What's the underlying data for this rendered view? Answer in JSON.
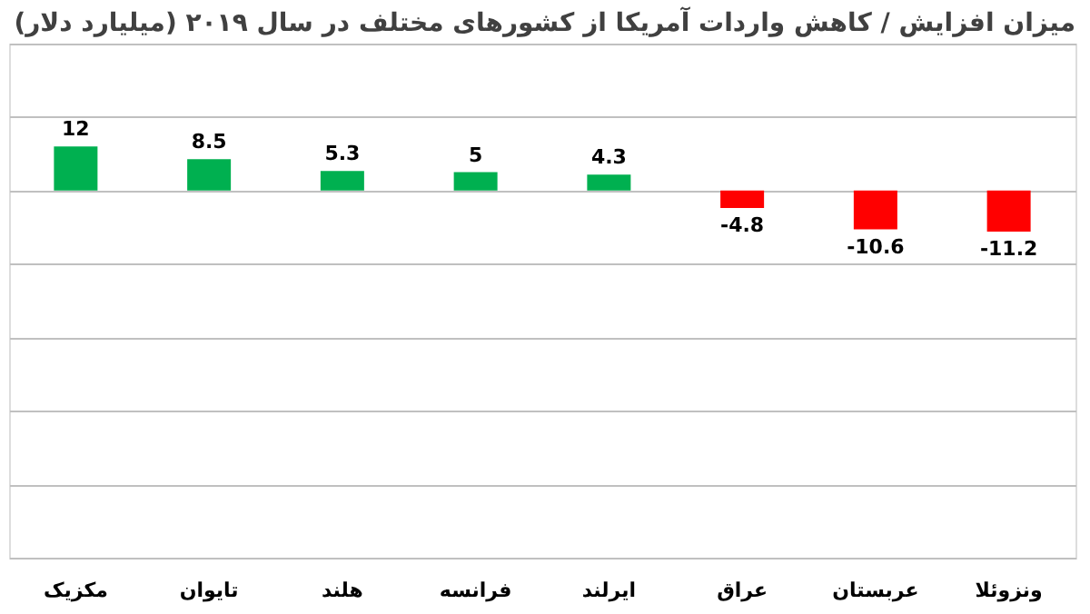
{
  "chart_data": {
    "type": "bar",
    "title": "میزان افزایش / کاهش واردات آمریکا از کشورهای مختلف در سال ۲۰۱۹ (میلیارد دلار)",
    "categories": [
      "مکزیک",
      "تایوان",
      "هلند",
      "فرانسه",
      "ایرلند",
      "عراق",
      "عربستان",
      "ونزوئلا"
    ],
    "values": [
      12,
      8.5,
      5.3,
      5,
      4.3,
      -4.8,
      -10.6,
      -11.2
    ],
    "colors": [
      "#00b050",
      "#00b050",
      "#00b050",
      "#00b050",
      "#00b050",
      "#ff0000",
      "#ff0000",
      "#ff0000"
    ],
    "ylim": [
      -100,
      40
    ],
    "tick_labels": "x",
    "grid": "y",
    "data_labels": true
  }
}
